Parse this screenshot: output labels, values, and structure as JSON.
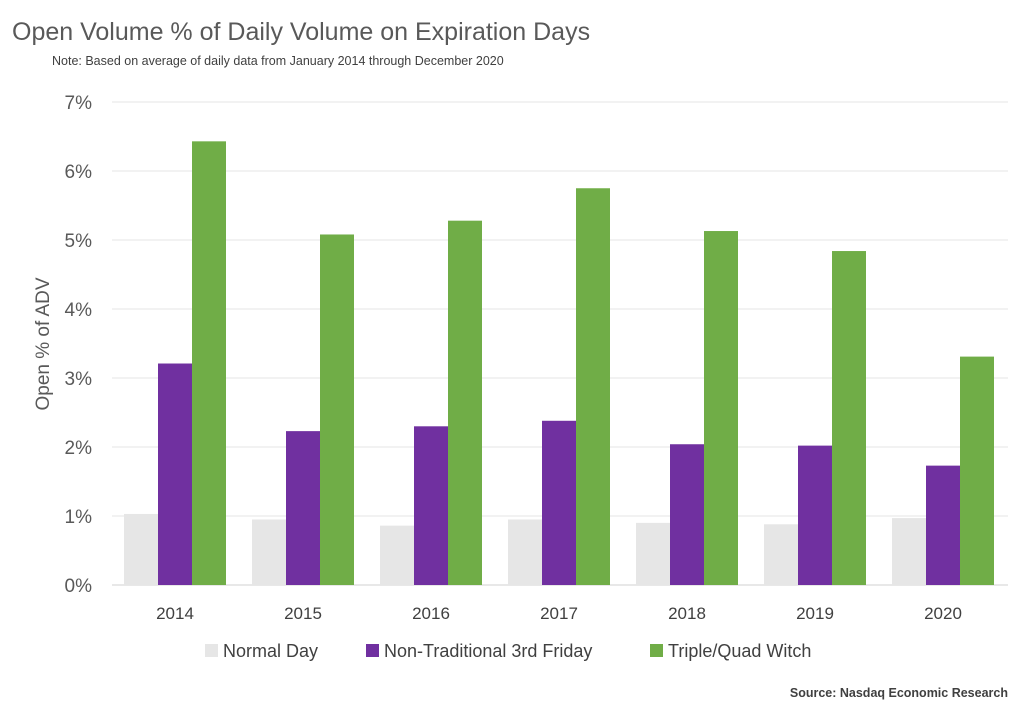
{
  "header": {
    "title": "Open Volume % of Daily Volume on Expiration Days",
    "note": "Note: Based on average of daily data from January 2014 through December 2020"
  },
  "footer": {
    "source": "Source: Nasdaq Economic Research"
  },
  "chart_data": {
    "type": "bar",
    "title": "Open Volume % of Daily Volume on Expiration Days",
    "xlabel": "",
    "ylabel": "Open % of ADV",
    "ylim": [
      0,
      7
    ],
    "yticks": [
      "0%",
      "1%",
      "2%",
      "3%",
      "4%",
      "5%",
      "6%",
      "7%"
    ],
    "grid": true,
    "legend_position": "bottom",
    "categories": [
      "2014",
      "2015",
      "2016",
      "2017",
      "2018",
      "2019",
      "2020"
    ],
    "series": [
      {
        "name": "Normal Day",
        "color": "#e6e6e6",
        "values": [
          1.03,
          0.95,
          0.86,
          0.95,
          0.9,
          0.88,
          0.97
        ]
      },
      {
        "name": "Non-Traditional 3rd Friday",
        "color": "#7030a0",
        "values": [
          3.21,
          2.23,
          2.3,
          2.38,
          2.04,
          2.02,
          1.73
        ]
      },
      {
        "name": "Triple/Quad Witch",
        "color": "#70ad47",
        "values": [
          6.43,
          5.08,
          5.28,
          5.75,
          5.13,
          4.84,
          3.31
        ]
      }
    ]
  }
}
